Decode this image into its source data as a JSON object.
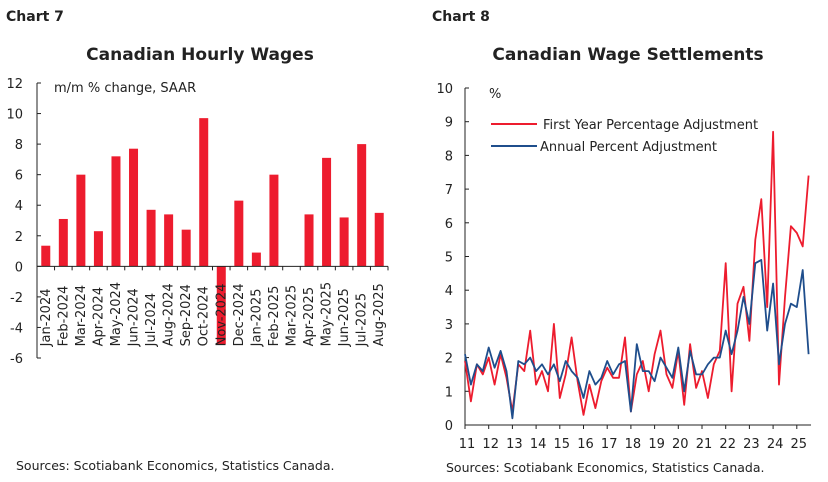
{
  "chart_data": [
    {
      "label": "Chart 7",
      "type": "bar",
      "title": "Canadian Hourly Wages",
      "ylabel": "m/m % change, SAAR",
      "ylim": [
        -6,
        12
      ],
      "yticks": [
        -6,
        -4,
        -2,
        0,
        2,
        4,
        6,
        8,
        10,
        12
      ],
      "categories": [
        "Jan-2024",
        "Feb-2024",
        "Mar-2024",
        "Apr-2024",
        "May-2024",
        "Jun-2024",
        "Jul-2024",
        "Aug-2024",
        "Sep-2024",
        "Oct-2024",
        "Nov-2024",
        "Dec-2024",
        "Jan-2025",
        "Feb-2025",
        "Mar-2025",
        "Apr-2025",
        "May-2025",
        "Jun-2025",
        "Jul-2025",
        "Aug-2025"
      ],
      "values": [
        1.35,
        3.1,
        6.0,
        2.3,
        7.2,
        7.7,
        3.7,
        3.4,
        2.4,
        9.7,
        -5.1,
        4.3,
        0.9,
        6.0,
        0.0,
        3.4,
        7.1,
        3.2,
        8.0,
        3.5
      ],
      "color": "#ed1c2e",
      "grid": false,
      "source": "Sources: Scotiabank Economics, Statistics Canada."
    },
    {
      "label": "Chart 8",
      "type": "line",
      "title": "Canadian Wage Settlements",
      "ylabel": "%",
      "ylim": [
        0,
        10
      ],
      "yticks": [
        0,
        1,
        2,
        3,
        4,
        5,
        6,
        7,
        8,
        9,
        10
      ],
      "xticks": [
        "11",
        "12",
        "13",
        "14",
        "15",
        "16",
        "17",
        "18",
        "19",
        "20",
        "21",
        "22",
        "23",
        "24",
        "25"
      ],
      "xlim": [
        2011,
        2025.6
      ],
      "x_start": 2011,
      "x_step": 0.25,
      "legend": "top-left",
      "grid": false,
      "series": [
        {
          "name": "First Year Percentage Adjustment",
          "color": "#ed1c2e",
          "values": [
            1.9,
            0.7,
            1.8,
            1.5,
            2.0,
            1.2,
            2.1,
            1.4,
            0.4,
            1.8,
            1.6,
            2.8,
            1.2,
            1.6,
            1.0,
            3.0,
            0.8,
            1.5,
            2.6,
            1.3,
            0.3,
            1.2,
            0.5,
            1.3,
            1.7,
            1.4,
            1.4,
            2.6,
            0.4,
            1.5,
            1.9,
            1.0,
            2.1,
            2.8,
            1.5,
            1.1,
            2.2,
            0.6,
            2.4,
            1.1,
            1.6,
            0.8,
            1.8,
            2.2,
            4.8,
            1.0,
            3.6,
            4.1,
            2.5,
            5.5,
            6.7,
            3.5,
            8.7,
            1.2,
            3.8,
            5.9,
            5.7,
            5.3,
            7.4
          ]
        },
        {
          "name": "Annual Percent Adjustment",
          "color": "#1f4e8c",
          "values": [
            2.1,
            1.2,
            1.8,
            1.6,
            2.3,
            1.7,
            2.2,
            1.6,
            0.2,
            1.9,
            1.8,
            2.0,
            1.6,
            1.8,
            1.5,
            1.8,
            1.3,
            1.9,
            1.6,
            1.4,
            0.8,
            1.6,
            1.2,
            1.4,
            1.9,
            1.5,
            1.8,
            1.9,
            0.4,
            2.4,
            1.6,
            1.6,
            1.3,
            2.0,
            1.7,
            1.4,
            2.3,
            1.0,
            2.2,
            1.5,
            1.5,
            1.8,
            2.0,
            2.0,
            2.8,
            2.1,
            2.8,
            3.8,
            3.0,
            4.8,
            4.9,
            2.8,
            4.2,
            1.8,
            3.0,
            3.6,
            3.5,
            4.6,
            2.1
          ]
        }
      ],
      "source": "Sources: Scotiabank Economics, Statistics Canada."
    }
  ]
}
